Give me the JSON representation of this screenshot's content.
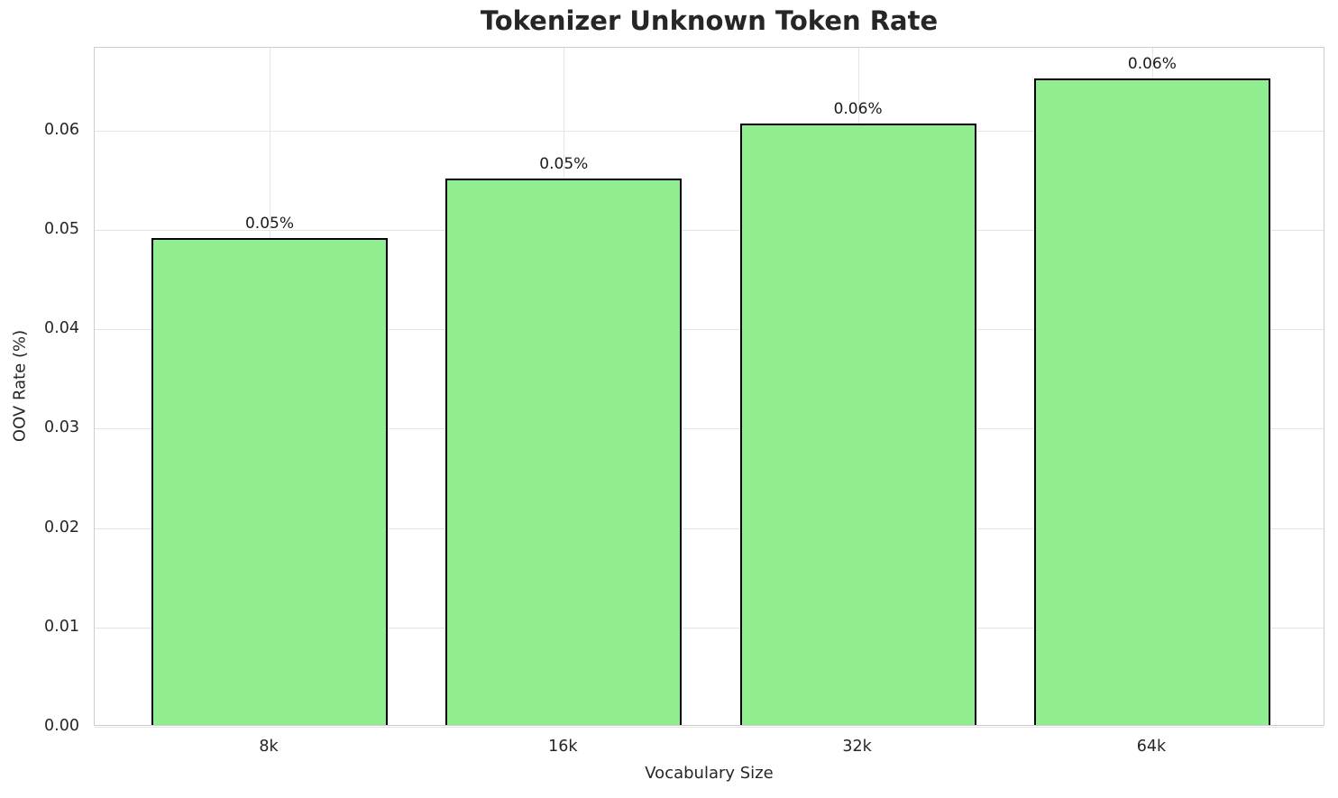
{
  "chart_data": {
    "type": "bar",
    "title": "Tokenizer Unknown Token Rate",
    "xlabel": "Vocabulary Size",
    "ylabel": "OOV Rate (%)",
    "categories": [
      "8k",
      "16k",
      "32k",
      "64k"
    ],
    "values": [
      0.049,
      0.055,
      0.0605,
      0.065
    ],
    "bar_labels": [
      "0.05%",
      "0.05%",
      "0.06%",
      "0.06%"
    ],
    "yticks": [
      0.0,
      0.01,
      0.02,
      0.03,
      0.04,
      0.05,
      0.06
    ],
    "ytick_labels": [
      "0.00",
      "0.01",
      "0.02",
      "0.03",
      "0.04",
      "0.05",
      "0.06"
    ],
    "ylim": [
      0,
      0.0683
    ],
    "grid": true,
    "legend": "none",
    "colors": {
      "bar_fill": "#90EE90",
      "bar_edge": "#000000",
      "grid": "#e4e4e4",
      "spine": "#cccccc",
      "text": "#262626"
    }
  }
}
